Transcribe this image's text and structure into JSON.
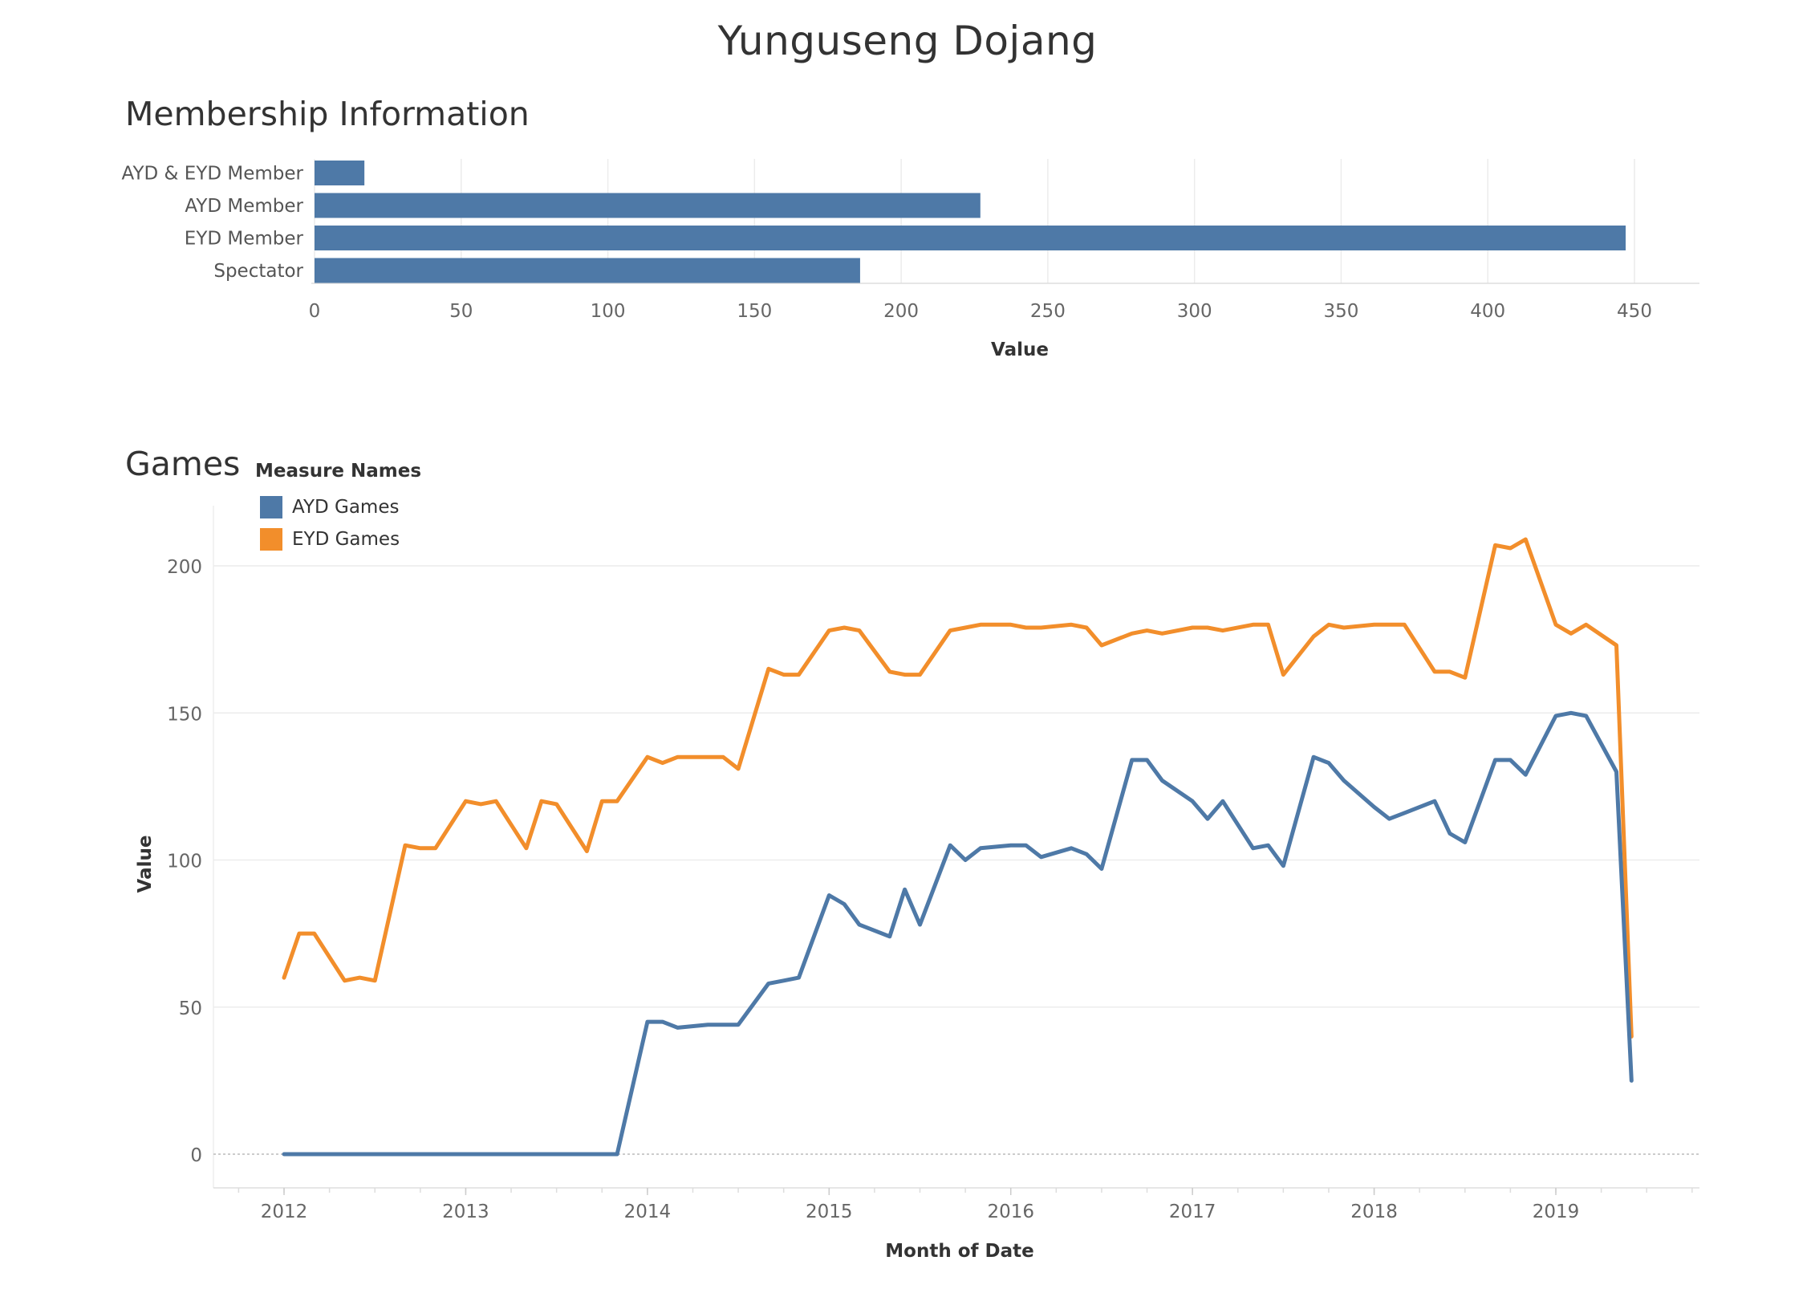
{
  "title": "Yunguseng Dojang",
  "colors": {
    "ayd": "#4e79a7",
    "eyd": "#f28e2b",
    "grid": "#ececec",
    "axis_text": "#666666"
  },
  "chart_data": [
    {
      "type": "bar",
      "title": "Membership Information",
      "categories": [
        "AYD & EYD Member",
        "AYD Member",
        "EYD Member",
        "Spectator"
      ],
      "values": [
        17,
        227,
        447,
        186
      ],
      "xlabel": "Value",
      "xlim": [
        0,
        450
      ],
      "xticks": [
        0,
        50,
        100,
        150,
        200,
        250,
        300,
        350,
        400,
        450
      ],
      "grid": true
    },
    {
      "type": "line",
      "title": "Games",
      "xlabel": "Month of Date",
      "ylabel": "Value",
      "ylim": [
        0,
        200
      ],
      "yticks": [
        0,
        50,
        100,
        150,
        200
      ],
      "xticks": [
        "2012",
        "2013",
        "2014",
        "2015",
        "2016",
        "2017",
        "2018",
        "2019"
      ],
      "legend_title": "Measure Names",
      "legend_position": "top-left",
      "series": [
        {
          "name": "AYD Games",
          "points": [
            [
              "2012-01",
              0
            ],
            [
              "2012-02",
              0
            ],
            [
              "2012-03",
              0
            ],
            [
              "2012-05",
              0
            ],
            [
              "2012-06",
              0
            ],
            [
              "2012-07",
              0
            ],
            [
              "2012-09",
              0
            ],
            [
              "2012-10",
              0
            ],
            [
              "2012-11",
              0
            ],
            [
              "2013-01",
              0
            ],
            [
              "2013-02",
              0
            ],
            [
              "2013-03",
              0
            ],
            [
              "2013-05",
              0
            ],
            [
              "2013-06",
              0
            ],
            [
              "2013-07",
              0
            ],
            [
              "2013-09",
              0
            ],
            [
              "2013-10",
              0
            ],
            [
              "2013-11",
              0
            ],
            [
              "2014-01",
              45
            ],
            [
              "2014-02",
              45
            ],
            [
              "2014-03",
              43
            ],
            [
              "2014-05",
              44
            ],
            [
              "2014-06",
              44
            ],
            [
              "2014-07",
              44
            ],
            [
              "2014-09",
              58
            ],
            [
              "2014-10",
              59
            ],
            [
              "2014-11",
              60
            ],
            [
              "2015-01",
              88
            ],
            [
              "2015-02",
              85
            ],
            [
              "2015-03",
              78
            ],
            [
              "2015-05",
              74
            ],
            [
              "2015-06",
              90
            ],
            [
              "2015-07",
              78
            ],
            [
              "2015-09",
              105
            ],
            [
              "2015-10",
              100
            ],
            [
              "2015-11",
              104
            ],
            [
              "2016-01",
              105
            ],
            [
              "2016-02",
              105
            ],
            [
              "2016-03",
              101
            ],
            [
              "2016-05",
              104
            ],
            [
              "2016-06",
              102
            ],
            [
              "2016-07",
              97
            ],
            [
              "2016-09",
              134
            ],
            [
              "2016-10",
              134
            ],
            [
              "2016-11",
              127
            ],
            [
              "2017-01",
              120
            ],
            [
              "2017-02",
              114
            ],
            [
              "2017-03",
              120
            ],
            [
              "2017-05",
              104
            ],
            [
              "2017-06",
              105
            ],
            [
              "2017-07",
              98
            ],
            [
              "2017-09",
              135
            ],
            [
              "2017-10",
              133
            ],
            [
              "2017-11",
              127
            ],
            [
              "2018-01",
              118
            ],
            [
              "2018-02",
              114
            ],
            [
              "2018-03",
              116
            ],
            [
              "2018-05",
              120
            ],
            [
              "2018-06",
              109
            ],
            [
              "2018-07",
              106
            ],
            [
              "2018-09",
              134
            ],
            [
              "2018-10",
              134
            ],
            [
              "2018-11",
              129
            ],
            [
              "2019-01",
              149
            ],
            [
              "2019-02",
              150
            ],
            [
              "2019-03",
              149
            ],
            [
              "2019-05",
              130
            ],
            [
              "2019-06",
              25
            ]
          ]
        },
        {
          "name": "EYD Games",
          "points": [
            [
              "2012-01",
              60
            ],
            [
              "2012-02",
              75
            ],
            [
              "2012-03",
              75
            ],
            [
              "2012-05",
              59
            ],
            [
              "2012-06",
              60
            ],
            [
              "2012-07",
              59
            ],
            [
              "2012-09",
              105
            ],
            [
              "2012-10",
              104
            ],
            [
              "2012-11",
              104
            ],
            [
              "2013-01",
              120
            ],
            [
              "2013-02",
              119
            ],
            [
              "2013-03",
              120
            ],
            [
              "2013-05",
              104
            ],
            [
              "2013-06",
              120
            ],
            [
              "2013-07",
              119
            ],
            [
              "2013-09",
              103
            ],
            [
              "2013-10",
              120
            ],
            [
              "2013-11",
              120
            ],
            [
              "2014-01",
              135
            ],
            [
              "2014-02",
              133
            ],
            [
              "2014-03",
              135
            ],
            [
              "2014-05",
              135
            ],
            [
              "2014-06",
              135
            ],
            [
              "2014-07",
              131
            ],
            [
              "2014-09",
              165
            ],
            [
              "2014-10",
              163
            ],
            [
              "2014-11",
              163
            ],
            [
              "2015-01",
              178
            ],
            [
              "2015-02",
              179
            ],
            [
              "2015-03",
              178
            ],
            [
              "2015-05",
              164
            ],
            [
              "2015-06",
              163
            ],
            [
              "2015-07",
              163
            ],
            [
              "2015-09",
              178
            ],
            [
              "2015-10",
              179
            ],
            [
              "2015-11",
              180
            ],
            [
              "2016-01",
              180
            ],
            [
              "2016-02",
              179
            ],
            [
              "2016-03",
              179
            ],
            [
              "2016-05",
              180
            ],
            [
              "2016-06",
              179
            ],
            [
              "2016-07",
              173
            ],
            [
              "2016-09",
              177
            ],
            [
              "2016-10",
              178
            ],
            [
              "2016-11",
              177
            ],
            [
              "2017-01",
              179
            ],
            [
              "2017-02",
              179
            ],
            [
              "2017-03",
              178
            ],
            [
              "2017-05",
              180
            ],
            [
              "2017-06",
              180
            ],
            [
              "2017-07",
              163
            ],
            [
              "2017-09",
              176
            ],
            [
              "2017-10",
              180
            ],
            [
              "2017-11",
              179
            ],
            [
              "2018-01",
              180
            ],
            [
              "2018-02",
              180
            ],
            [
              "2018-03",
              180
            ],
            [
              "2018-05",
              164
            ],
            [
              "2018-06",
              164
            ],
            [
              "2018-07",
              162
            ],
            [
              "2018-09",
              207
            ],
            [
              "2018-10",
              206
            ],
            [
              "2018-11",
              209
            ],
            [
              "2019-01",
              180
            ],
            [
              "2019-02",
              177
            ],
            [
              "2019-03",
              180
            ],
            [
              "2019-05",
              173
            ],
            [
              "2019-06",
              40
            ]
          ]
        }
      ]
    }
  ]
}
